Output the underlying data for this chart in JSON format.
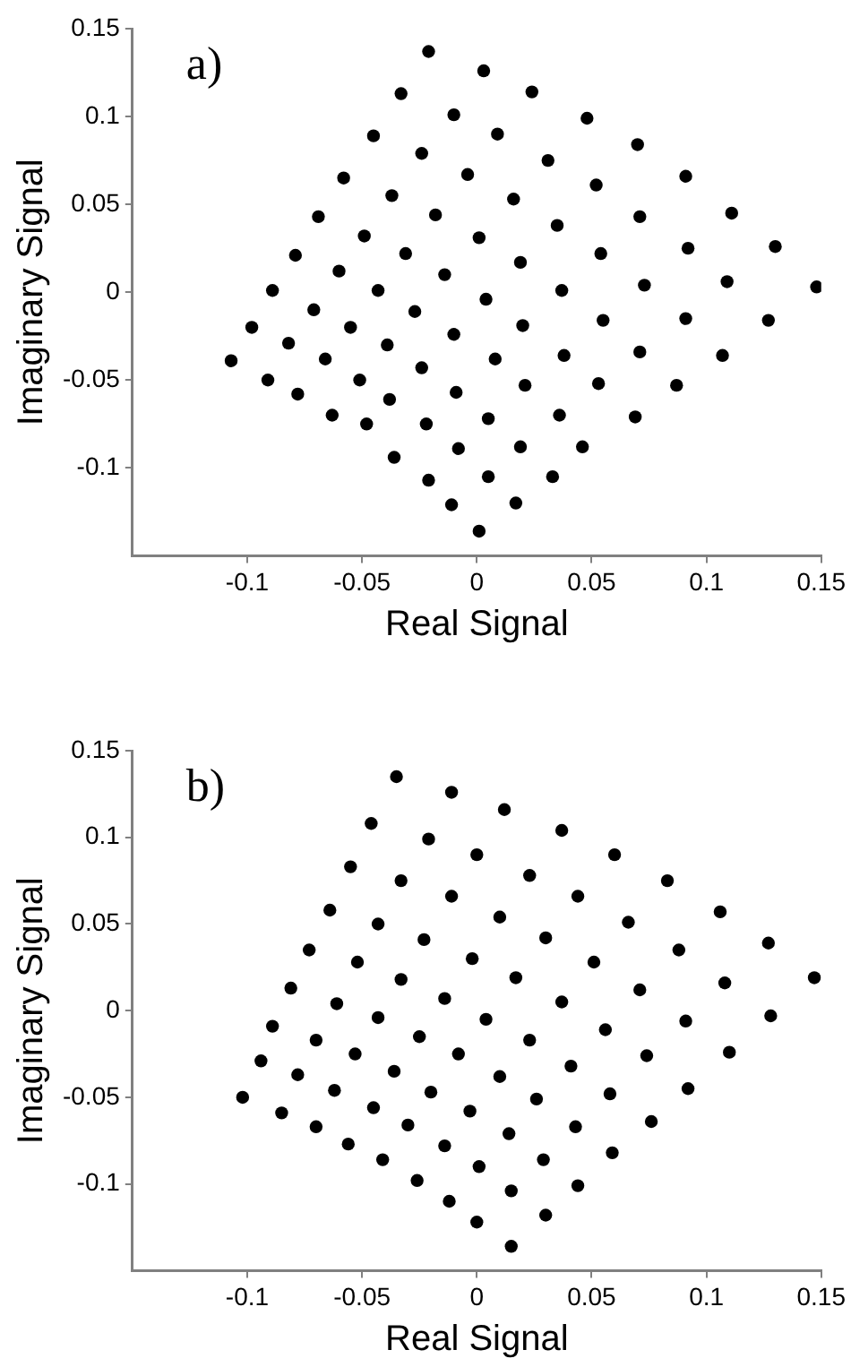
{
  "chart_data": [
    {
      "type": "scatter",
      "xlabel": "Real Signal",
      "ylabel": "Imaginary Signal",
      "annotations": [
        "a)"
      ],
      "xlim": [
        -0.15,
        0.15
      ],
      "ylim": [
        -0.15,
        0.15
      ],
      "xticks": [
        -0.1,
        -0.05,
        0,
        0.05,
        0.1,
        0.15
      ],
      "yticks": [
        -0.1,
        -0.05,
        0,
        0.05,
        0.1,
        0.15
      ],
      "grid": false,
      "marker": "circle",
      "series": [
        {
          "color": "#000000",
          "x": [
            -0.021,
            0.003,
            0.024,
            0.048,
            0.07,
            0.091,
            0.111,
            0.13,
            -0.033,
            -0.01,
            0.009,
            0.031,
            0.052,
            0.071,
            0.092,
            -0.045,
            -0.024,
            -0.004,
            0.016,
            0.035,
            0.054,
            -0.058,
            -0.037,
            -0.018,
            0.001,
            0.019,
            -0.069,
            -0.049,
            -0.031,
            -0.079,
            -0.06,
            -0.014,
            0.148,
            0.109,
            0.073,
            0.037,
            -0.043,
            -0.089,
            0.127,
            0.091,
            0.055,
            0.02,
            0.004,
            -0.027,
            -0.055,
            -0.071,
            -0.098,
            0.107,
            0.071,
            0.038,
            0.008,
            -0.01,
            -0.039,
            -0.066,
            -0.082,
            -0.107,
            0.087,
            0.053,
            0.021,
            -0.009,
            -0.024,
            -0.051,
            -0.091,
            0.069,
            0.036,
            0.005,
            -0.038,
            -0.063,
            -0.078,
            0.046,
            0.019,
            -0.008,
            -0.022,
            -0.048,
            0.033,
            0.005,
            -0.021,
            -0.036,
            0.017,
            -0.011,
            0.001
          ],
          "values": [
            0.137,
            0.126,
            0.114,
            0.099,
            0.084,
            0.066,
            0.045,
            0.026,
            0.113,
            0.101,
            0.09,
            0.075,
            0.061,
            0.043,
            0.025,
            0.089,
            0.079,
            0.067,
            0.053,
            0.038,
            0.022,
            0.065,
            0.055,
            0.044,
            0.031,
            0.017,
            0.043,
            0.032,
            0.022,
            0.021,
            0.012,
            0.01,
            0.003,
            0.006,
            0.004,
            0.001,
            0.001,
            0.001,
            -0.016,
            -0.015,
            -0.016,
            -0.019,
            -0.004,
            -0.011,
            -0.02,
            -0.01,
            -0.02,
            -0.036,
            -0.034,
            -0.036,
            -0.038,
            -0.024,
            -0.03,
            -0.038,
            -0.029,
            -0.039,
            -0.053,
            -0.052,
            -0.053,
            -0.057,
            -0.043,
            -0.05,
            -0.05,
            -0.071,
            -0.07,
            -0.072,
            -0.061,
            -0.07,
            -0.058,
            -0.088,
            -0.088,
            -0.089,
            -0.075,
            -0.075,
            -0.105,
            -0.105,
            -0.107,
            -0.094,
            -0.12,
            -0.121,
            -0.136
          ]
        }
      ]
    },
    {
      "type": "scatter",
      "xlabel": "Real Signal",
      "ylabel": "Imaginary Signal",
      "annotations": [
        "b)"
      ],
      "xlim": [
        -0.15,
        0.15
      ],
      "ylim": [
        -0.15,
        0.15
      ],
      "xticks": [
        -0.1,
        -0.05,
        0,
        0.05,
        0.1,
        0.15
      ],
      "yticks": [
        -0.1,
        -0.05,
        0,
        0.05,
        0.1,
        0.15
      ],
      "grid": false,
      "marker": "circle",
      "series": [
        {
          "color": "#000000",
          "x": [
            -0.035,
            -0.011,
            0.012,
            0.037,
            0.06,
            0.083,
            0.106,
            0.127,
            -0.046,
            -0.021,
            0.0,
            0.023,
            0.044,
            0.066,
            -0.055,
            -0.033,
            -0.011,
            0.01,
            0.03,
            -0.064,
            -0.043,
            -0.023,
            -0.002,
            0.051,
            0.088,
            0.147,
            -0.073,
            -0.052,
            -0.033,
            0.017,
            0.071,
            0.108,
            -0.081,
            -0.061,
            -0.014,
            0.037,
            0.091,
            0.128,
            -0.089,
            -0.043,
            0.004,
            0.056,
            0.11,
            -0.07,
            -0.025,
            0.023,
            0.074,
            -0.094,
            -0.053,
            -0.008,
            0.041,
            0.092,
            -0.078,
            -0.036,
            0.01,
            0.058,
            0.076,
            -0.102,
            -0.062,
            -0.02,
            0.026,
            0.043,
            0.059,
            -0.085,
            -0.045,
            -0.003,
            0.014,
            0.029,
            0.044,
            -0.07,
            -0.03,
            -0.014,
            0.001,
            0.015,
            -0.056,
            -0.041,
            -0.026,
            -0.012,
            0.0,
            0.03,
            0.015
          ],
          "values": [
            0.135,
            0.126,
            0.116,
            0.104,
            0.09,
            0.075,
            0.057,
            0.039,
            0.108,
            0.099,
            0.09,
            0.078,
            0.066,
            0.051,
            0.083,
            0.075,
            0.066,
            0.054,
            0.042,
            0.058,
            0.05,
            0.041,
            0.03,
            0.028,
            0.035,
            0.019,
            0.035,
            0.028,
            0.018,
            0.019,
            0.012,
            0.016,
            0.013,
            0.004,
            0.007,
            0.005,
            -0.006,
            -0.003,
            -0.009,
            -0.004,
            -0.005,
            -0.011,
            -0.024,
            -0.017,
            -0.015,
            -0.017,
            -0.026,
            -0.029,
            -0.025,
            -0.025,
            -0.032,
            -0.045,
            -0.037,
            -0.035,
            -0.038,
            -0.048,
            -0.064,
            -0.05,
            -0.046,
            -0.047,
            -0.051,
            -0.067,
            -0.082,
            -0.059,
            -0.056,
            -0.058,
            -0.071,
            -0.086,
            -0.101,
            -0.067,
            -0.066,
            -0.078,
            -0.09,
            -0.104,
            -0.077,
            -0.086,
            -0.098,
            -0.11,
            -0.122,
            -0.118,
            -0.136
          ]
        }
      ]
    }
  ]
}
